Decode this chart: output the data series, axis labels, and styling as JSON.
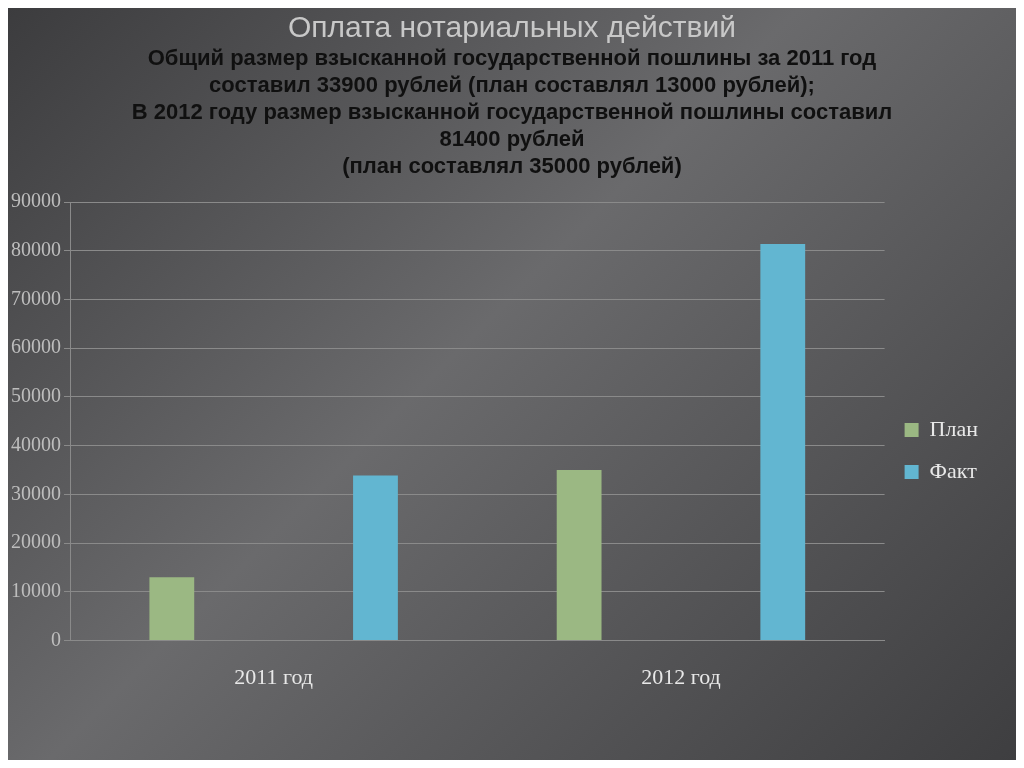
{
  "chart_data": {
    "type": "bar",
    "title": "Оплата нотариальных действий",
    "subtitle": "Общий размер взысканной государственной пошлины за 2011 год\nсоставил 33900 рублей (план составлял 13000 рублей);\nВ 2012 году размер взысканной государственной пошлины составил\n81400 рублей\n(план составлял 35000 рублей)",
    "categories": [
      "2011 год",
      "2012 год"
    ],
    "series": [
      {
        "name": "План",
        "color": "#9bb883",
        "values": [
          13000,
          35000
        ]
      },
      {
        "name": "Факт",
        "color": "#62b6d1",
        "values": [
          33900,
          81400
        ]
      }
    ],
    "ylim": [
      0,
      90000
    ],
    "yticks": [
      0,
      10000,
      20000,
      30000,
      40000,
      50000,
      60000,
      70000,
      80000,
      90000
    ],
    "grid": "y",
    "legend": "right"
  }
}
